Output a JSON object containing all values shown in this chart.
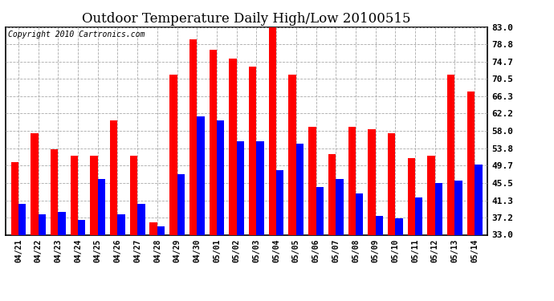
{
  "title": "Outdoor Temperature Daily High/Low 20100515",
  "copyright": "Copyright 2010 Cartronics.com",
  "categories": [
    "04/21",
    "04/22",
    "04/23",
    "04/24",
    "04/25",
    "04/26",
    "04/27",
    "04/28",
    "04/29",
    "04/30",
    "05/01",
    "05/02",
    "05/03",
    "05/04",
    "05/05",
    "05/06",
    "05/07",
    "05/08",
    "05/09",
    "05/10",
    "05/11",
    "05/12",
    "05/13",
    "05/14"
  ],
  "highs": [
    50.5,
    57.5,
    53.5,
    52.0,
    52.0,
    60.5,
    52.0,
    36.0,
    71.5,
    80.0,
    77.5,
    75.5,
    73.5,
    84.0,
    71.5,
    59.0,
    52.5,
    59.0,
    58.5,
    57.5,
    51.5,
    52.0,
    71.5,
    67.5
  ],
  "lows": [
    40.5,
    38.0,
    38.5,
    36.5,
    46.5,
    38.0,
    40.5,
    35.0,
    47.5,
    61.5,
    60.5,
    55.5,
    55.5,
    48.5,
    55.0,
    44.5,
    46.5,
    43.0,
    37.5,
    37.0,
    42.0,
    45.5,
    46.0,
    50.0
  ],
  "high_color": "#ff0000",
  "low_color": "#0000ff",
  "bg_color": "#ffffff",
  "plot_bg_color": "#ffffff",
  "grid_color": "#aaaaaa",
  "yticks": [
    33.0,
    37.2,
    41.3,
    45.5,
    49.7,
    53.8,
    58.0,
    62.2,
    66.3,
    70.5,
    74.7,
    78.8,
    83.0
  ],
  "ymin": 33.0,
  "ymax": 83.0,
  "title_fontsize": 12,
  "copyright_fontsize": 7,
  "bar_width": 0.38
}
